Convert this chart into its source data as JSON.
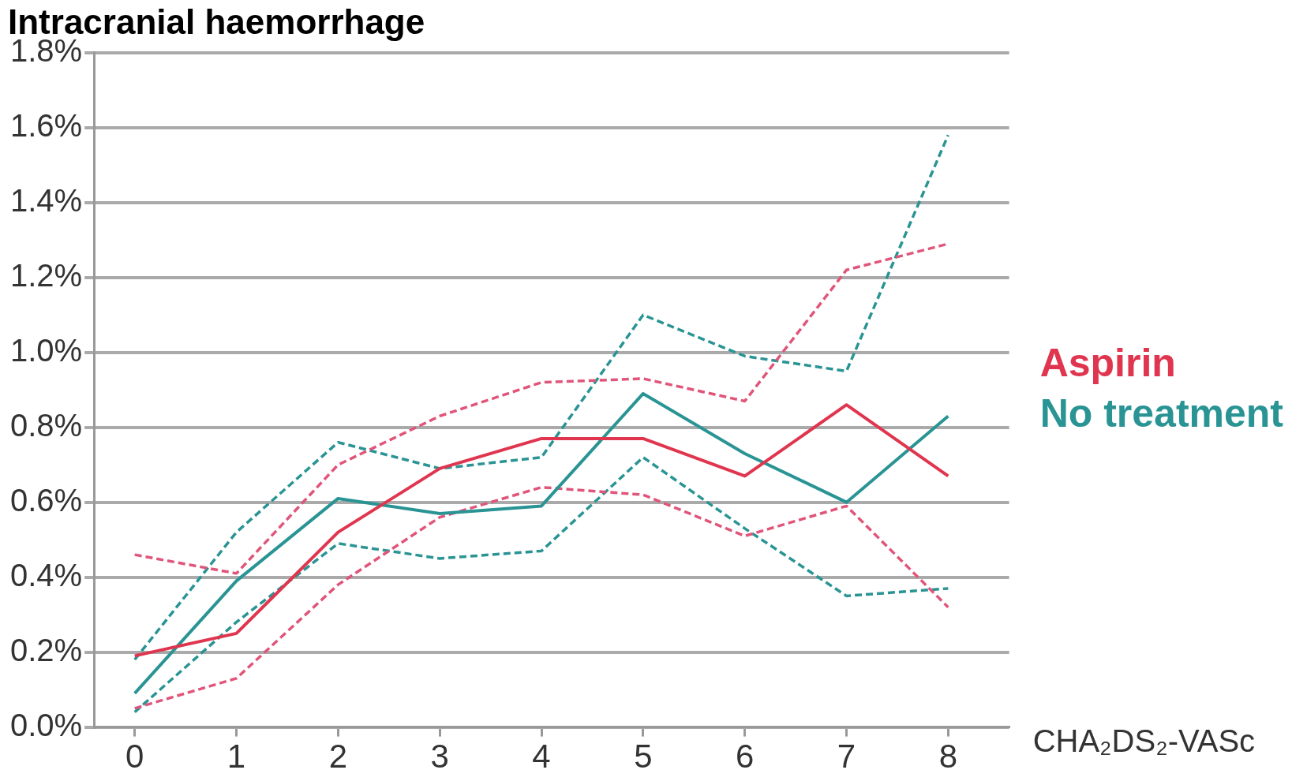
{
  "chart_data": {
    "type": "line",
    "title": "Intracranial haemorrhage",
    "xlabel": "CHA₂DS₂-VASc",
    "x": [
      0,
      1,
      2,
      3,
      4,
      5,
      6,
      7,
      8
    ],
    "xlim": [
      -0.4,
      8.6
    ],
    "xticks": [
      0,
      1,
      2,
      3,
      4,
      5,
      6,
      7,
      8
    ],
    "ylim": [
      0,
      1.8
    ],
    "yticks": [
      {
        "value": 0,
        "label": "0.0%"
      },
      {
        "value": 0.2,
        "label": "0.2%"
      },
      {
        "value": 0.4,
        "label": "0.4%"
      },
      {
        "value": 0.6,
        "label": "0.6%"
      },
      {
        "value": 0.8,
        "label": "0.8%"
      },
      {
        "value": 1.0,
        "label": "1.0%"
      },
      {
        "value": 1.2,
        "label": "1.2%"
      },
      {
        "value": 1.4,
        "label": "1.4%"
      },
      {
        "value": 1.6,
        "label": "1.6%"
      },
      {
        "value": 1.8,
        "label": "1.8%"
      }
    ],
    "grid": "y",
    "legend": "right",
    "marker": "none",
    "series": [
      {
        "name": "Aspirin",
        "color": "#e0354f",
        "line_style": "solid",
        "values": [
          0.19,
          0.25,
          0.52,
          0.69,
          0.77,
          0.77,
          0.67,
          0.86,
          0.67
        ]
      },
      {
        "name": "No treatment",
        "color": "#2a9494",
        "line_style": "solid",
        "values": [
          0.09,
          0.39,
          0.61,
          0.57,
          0.59,
          0.89,
          0.73,
          0.6,
          0.83
        ]
      },
      {
        "color": "#e0557a",
        "line_style": "dashed",
        "values": [
          0.46,
          0.41,
          0.7,
          0.83,
          0.92,
          0.93,
          0.87,
          1.22,
          1.29
        ]
      },
      {
        "color": "#e0557a",
        "line_style": "dashed",
        "values": [
          0.05,
          0.13,
          0.38,
          0.56,
          0.64,
          0.62,
          0.51,
          0.59,
          0.32
        ]
      },
      {
        "color": "#2a9494",
        "line_style": "dashed",
        "values": [
          0.18,
          0.52,
          0.76,
          0.69,
          0.72,
          1.1,
          0.99,
          0.95,
          1.58
        ]
      },
      {
        "color": "#2a9494",
        "line_style": "dashed",
        "values": [
          0.04,
          0.28,
          0.49,
          0.45,
          0.47,
          0.72,
          0.53,
          0.35,
          0.37
        ]
      }
    ]
  }
}
